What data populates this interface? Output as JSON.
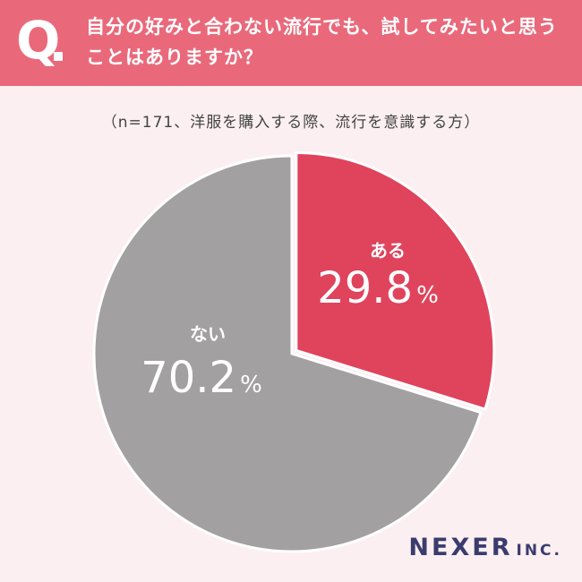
{
  "header": {
    "question_mark": "Q",
    "question": "自分の好みと合わない流行でも、試してみたいと思うことはありますか？"
  },
  "subtitle": "（n=171、洋服を購入する際、流行を意識する方）",
  "chart_data": {
    "type": "pie",
    "slices": [
      {
        "label": "ある",
        "value": 29.8,
        "display": "29.8",
        "unit": "%",
        "color": "#e0435c"
      },
      {
        "label": "ない",
        "value": 70.2,
        "display": "70.2",
        "unit": "%",
        "color": "#a2a0a1"
      }
    ],
    "start_angle": "12 o'clock",
    "direction": "clockwise",
    "legend": "none"
  },
  "logo": {
    "main": "NEXER",
    "suffix": "INC."
  }
}
